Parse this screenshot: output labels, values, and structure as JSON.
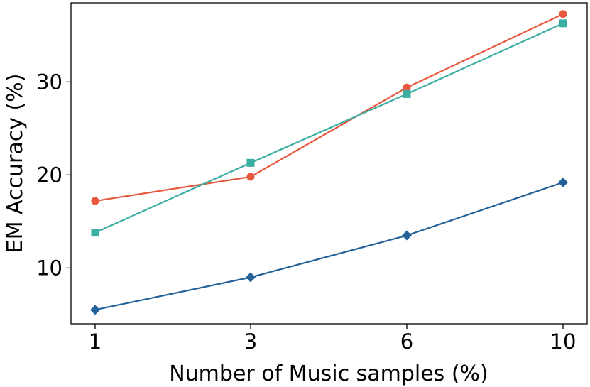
{
  "chart_data": {
    "type": "line",
    "title": "",
    "xlabel": "Number of Music samples (%)",
    "ylabel": "EM Accuracy (%)",
    "categories": [
      "1",
      "3",
      "6",
      "10"
    ],
    "ylim": [
      4,
      38.5
    ],
    "yticks": [
      10,
      20,
      30
    ],
    "grid": false,
    "legend": "none",
    "series": [
      {
        "color": "#e8583d",
        "marker": "circle",
        "values": [
          17.2,
          19.8,
          29.4,
          37.3
        ]
      },
      {
        "color": "#3aaea3",
        "marker": "square",
        "values": [
          13.8,
          21.3,
          28.7,
          36.3
        ]
      },
      {
        "color": "#246199",
        "marker": "diamond",
        "values": [
          5.5,
          9.0,
          13.5,
          19.2
        ]
      }
    ]
  }
}
